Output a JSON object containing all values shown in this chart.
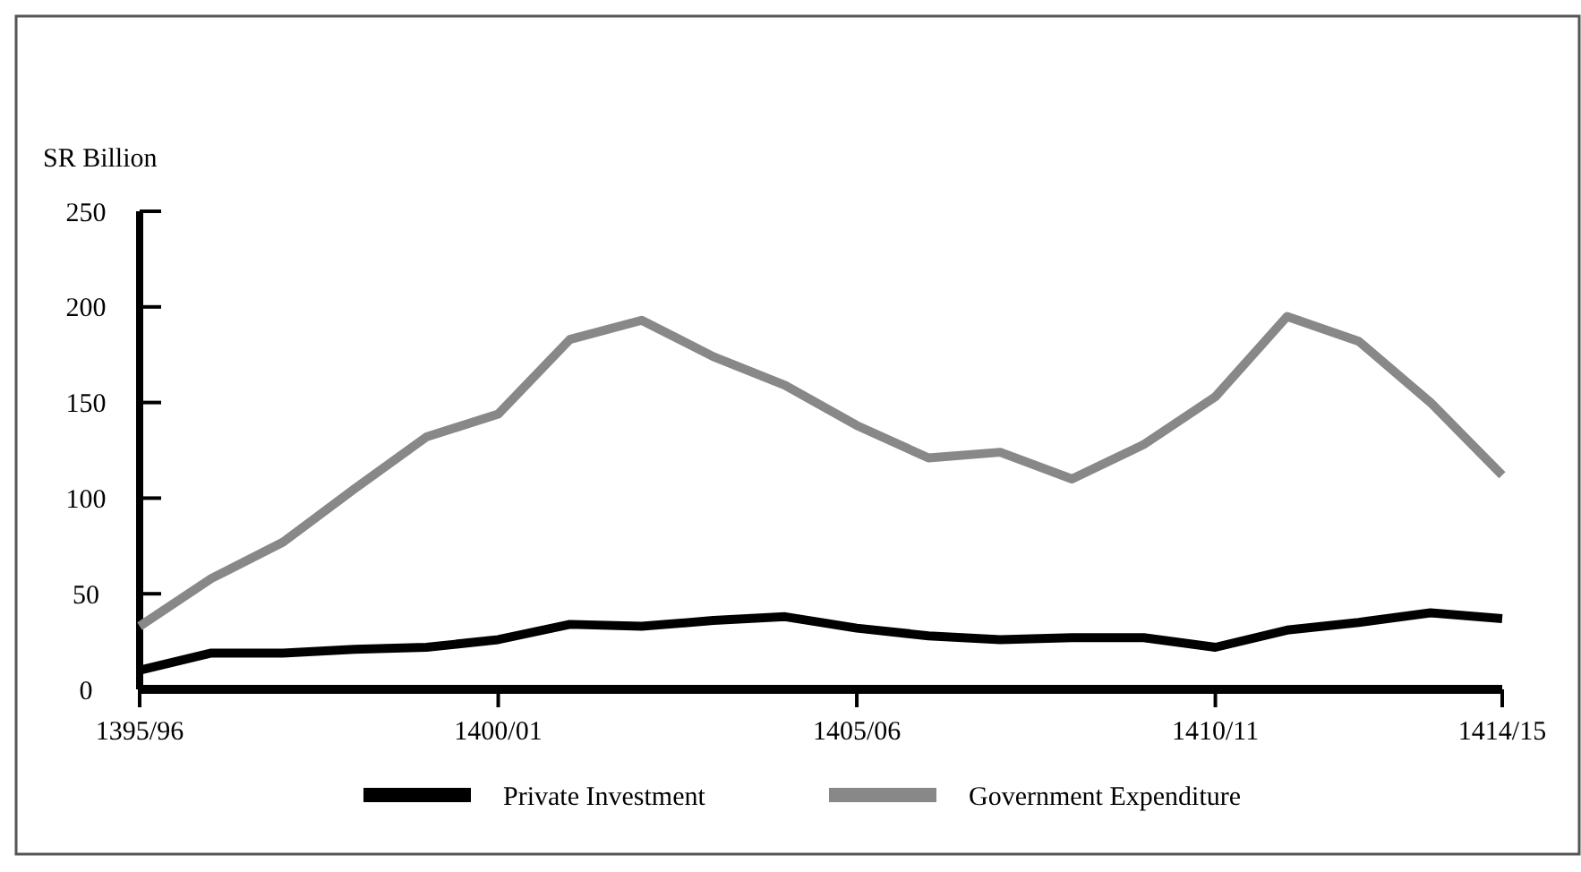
{
  "chart_data": {
    "type": "line",
    "ylabel": "SR Billion",
    "categories": [
      "1395/96",
      null,
      null,
      null,
      null,
      "1400/01",
      null,
      null,
      null,
      null,
      "1405/06",
      null,
      null,
      null,
      null,
      "1410/11",
      null,
      null,
      null,
      "1414/15"
    ],
    "ylim": [
      0,
      250
    ],
    "yticks": [
      0,
      50,
      100,
      150,
      200,
      250
    ],
    "grid": false,
    "legend": "bottom",
    "marker": "none",
    "line_style": "solid",
    "series": [
      {
        "name": "Private Investment",
        "color": "#000000",
        "values": [
          10,
          19,
          19,
          21,
          22,
          26,
          34,
          33,
          36,
          38,
          32,
          28,
          26,
          27,
          27,
          22,
          31,
          35,
          40,
          37
        ]
      },
      {
        "name": "Government Expenditure",
        "color": "#888888",
        "values": [
          33,
          58,
          77,
          105,
          132,
          144,
          183,
          193,
          174,
          159,
          138,
          121,
          124,
          110,
          128,
          153,
          195,
          182,
          150,
          112
        ]
      }
    ]
  }
}
